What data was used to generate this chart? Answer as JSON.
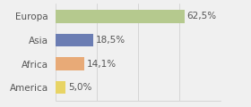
{
  "categories": [
    "Europa",
    "Asia",
    "Africa",
    "America"
  ],
  "values": [
    62.5,
    18.5,
    14.1,
    5.0
  ],
  "labels": [
    "62,5%",
    "18,5%",
    "14,1%",
    "5,0%"
  ],
  "bar_colors": [
    "#b5c98e",
    "#6b7db3",
    "#e8aa77",
    "#e8d465"
  ],
  "background_color": "#f0f0f0",
  "xlim": [
    0,
    80
  ],
  "bar_height": 0.55,
  "fontsize": 7.5,
  "label_color": "#555555"
}
